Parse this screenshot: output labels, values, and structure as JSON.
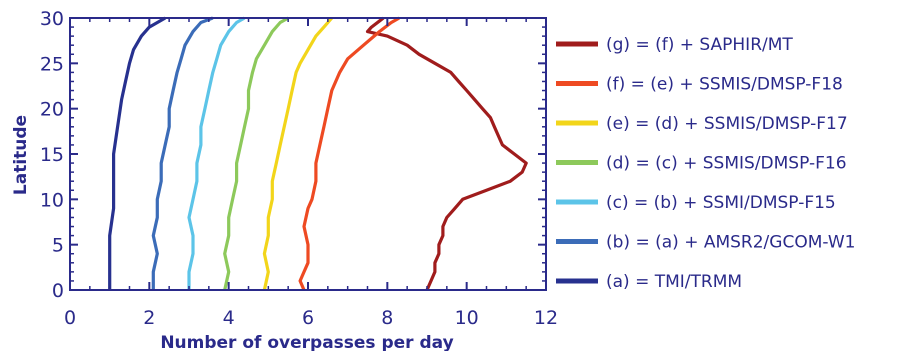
{
  "chart_data": {
    "type": "line",
    "xlabel": "Number of overpasses per day",
    "ylabel": "Latitude",
    "xlim": [
      0,
      12
    ],
    "ylim": [
      0,
      30
    ],
    "x_ticks": [
      "0",
      "2",
      "4",
      "6",
      "8",
      "10",
      "12"
    ],
    "y_ticks": [
      "0",
      "5",
      "10",
      "15",
      "20",
      "25",
      "30"
    ],
    "grid": false,
    "legend_position": "right",
    "axis_color": "#2a2a8a",
    "series": [
      {
        "name": "(g) = (f) + SAPHIR/MT",
        "color": "#a01c1c",
        "points": [
          [
            9.0,
            0
          ],
          [
            9.1,
            1
          ],
          [
            9.2,
            2
          ],
          [
            9.2,
            3
          ],
          [
            9.3,
            4
          ],
          [
            9.3,
            5
          ],
          [
            9.4,
            6
          ],
          [
            9.4,
            7
          ],
          [
            9.5,
            8
          ],
          [
            9.7,
            9
          ],
          [
            9.9,
            10
          ],
          [
            10.5,
            11
          ],
          [
            11.1,
            12
          ],
          [
            11.4,
            13
          ],
          [
            11.5,
            14
          ],
          [
            11.2,
            15
          ],
          [
            10.9,
            16
          ],
          [
            10.8,
            17
          ],
          [
            10.7,
            18
          ],
          [
            10.6,
            19
          ],
          [
            10.4,
            20
          ],
          [
            10.2,
            21
          ],
          [
            10.0,
            22
          ],
          [
            9.8,
            23
          ],
          [
            9.6,
            24
          ],
          [
            9.2,
            25
          ],
          [
            8.8,
            26
          ],
          [
            8.5,
            27
          ],
          [
            8.0,
            28
          ],
          [
            7.5,
            28.5
          ],
          [
            7.6,
            29
          ],
          [
            7.9,
            30
          ]
        ]
      },
      {
        "name": "(f) = (e) + SSMIS/DMSP-F18",
        "color": "#ee4a22",
        "points": [
          [
            5.9,
            0
          ],
          [
            5.8,
            1
          ],
          [
            5.9,
            2
          ],
          [
            6.0,
            3
          ],
          [
            6.0,
            5
          ],
          [
            5.9,
            7
          ],
          [
            6.0,
            9
          ],
          [
            6.1,
            10
          ],
          [
            6.2,
            12
          ],
          [
            6.2,
            14
          ],
          [
            6.3,
            16
          ],
          [
            6.4,
            18
          ],
          [
            6.5,
            20
          ],
          [
            6.6,
            22
          ],
          [
            6.8,
            24
          ],
          [
            7.0,
            25.5
          ],
          [
            7.4,
            27
          ],
          [
            7.8,
            28.5
          ],
          [
            8.1,
            29.5
          ],
          [
            8.3,
            30
          ]
        ]
      },
      {
        "name": "(e) = (d) + SSMIS/DMSP-F17",
        "color": "#f2d51a",
        "points": [
          [
            4.9,
            0
          ],
          [
            5.0,
            2
          ],
          [
            4.9,
            4
          ],
          [
            5.0,
            6
          ],
          [
            5.0,
            8
          ],
          [
            5.1,
            10
          ],
          [
            5.1,
            12
          ],
          [
            5.2,
            14
          ],
          [
            5.3,
            16
          ],
          [
            5.4,
            18
          ],
          [
            5.5,
            20
          ],
          [
            5.6,
            22
          ],
          [
            5.7,
            24
          ],
          [
            5.8,
            25
          ],
          [
            6.0,
            26.5
          ],
          [
            6.2,
            28
          ],
          [
            6.4,
            29
          ],
          [
            6.6,
            30
          ]
        ]
      },
      {
        "name": "(d) = (c) + SSMIS/DMSP-F16",
        "color": "#8dc95b",
        "points": [
          [
            3.9,
            0
          ],
          [
            4.0,
            2
          ],
          [
            3.9,
            4
          ],
          [
            4.0,
            6
          ],
          [
            4.0,
            8
          ],
          [
            4.1,
            10
          ],
          [
            4.2,
            12
          ],
          [
            4.2,
            14
          ],
          [
            4.3,
            16
          ],
          [
            4.4,
            18
          ],
          [
            4.5,
            20
          ],
          [
            4.5,
            22
          ],
          [
            4.6,
            24
          ],
          [
            4.7,
            25.5
          ],
          [
            4.9,
            27
          ],
          [
            5.1,
            28.5
          ],
          [
            5.3,
            29.5
          ],
          [
            5.5,
            30
          ]
        ]
      },
      {
        "name": "(c) = (b) + SSMI/DMSP-F15",
        "color": "#5cc4e8",
        "points": [
          [
            3.0,
            0
          ],
          [
            3.0,
            2
          ],
          [
            3.1,
            4
          ],
          [
            3.1,
            6
          ],
          [
            3.0,
            8
          ],
          [
            3.1,
            10
          ],
          [
            3.2,
            12
          ],
          [
            3.2,
            14
          ],
          [
            3.3,
            16
          ],
          [
            3.3,
            18
          ],
          [
            3.4,
            20
          ],
          [
            3.5,
            22
          ],
          [
            3.6,
            24
          ],
          [
            3.7,
            25.5
          ],
          [
            3.8,
            27
          ],
          [
            4.0,
            28.5
          ],
          [
            4.2,
            29.5
          ],
          [
            4.4,
            30
          ]
        ]
      },
      {
        "name": "(b) = (a) + AMSR2/GCOM-W1",
        "color": "#3b6cb8",
        "points": [
          [
            2.1,
            0
          ],
          [
            2.1,
            2
          ],
          [
            2.2,
            4
          ],
          [
            2.1,
            6
          ],
          [
            2.2,
            8
          ],
          [
            2.2,
            10
          ],
          [
            2.3,
            12
          ],
          [
            2.3,
            14
          ],
          [
            2.4,
            16
          ],
          [
            2.5,
            18
          ],
          [
            2.5,
            20
          ],
          [
            2.6,
            22
          ],
          [
            2.7,
            24
          ],
          [
            2.8,
            25.5
          ],
          [
            2.9,
            27
          ],
          [
            3.1,
            28.5
          ],
          [
            3.3,
            29.5
          ],
          [
            3.6,
            30
          ]
        ]
      },
      {
        "name": "(a) = TMI/TRMM",
        "color": "#27318f",
        "points": [
          [
            1.0,
            0
          ],
          [
            1.0,
            3
          ],
          [
            1.0,
            6
          ],
          [
            1.1,
            9
          ],
          [
            1.1,
            12
          ],
          [
            1.1,
            15
          ],
          [
            1.2,
            18
          ],
          [
            1.3,
            21
          ],
          [
            1.4,
            23
          ],
          [
            1.5,
            25
          ],
          [
            1.6,
            26.5
          ],
          [
            1.8,
            28
          ],
          [
            2.0,
            29
          ],
          [
            2.4,
            30
          ]
        ]
      }
    ]
  }
}
